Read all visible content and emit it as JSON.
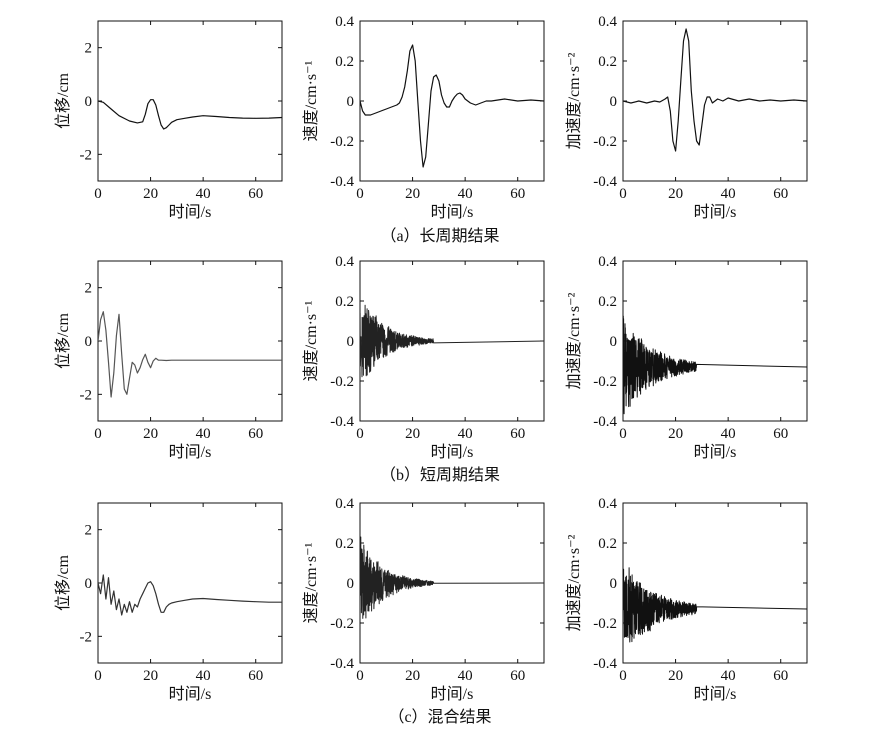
{
  "captions": [
    "（a）长周期结果",
    "（b）短周期结果",
    "（c）混合结果"
  ],
  "chart_data": [
    {
      "type": "line",
      "row": "a",
      "quantity": "displacement",
      "xlabel": "时间/s",
      "ylabel": "位移/cm",
      "xlim": [
        0,
        70
      ],
      "ylim": [
        -3,
        3
      ],
      "xticks": [
        0,
        20,
        40,
        60
      ],
      "yticks": [
        -2,
        0,
        2
      ],
      "line_color": "#111111",
      "grid": false,
      "series": [
        {
          "kind": "smooth",
          "x": [
            0,
            2,
            5,
            8,
            12,
            15,
            17,
            18,
            19,
            20,
            21,
            22,
            23,
            24,
            25,
            26,
            27,
            28,
            30,
            33,
            36,
            40,
            45,
            50,
            55,
            60,
            65,
            70
          ],
          "y": [
            0,
            -0.05,
            -0.3,
            -0.55,
            -0.75,
            -0.82,
            -0.78,
            -0.5,
            -0.1,
            0.05,
            0.05,
            -0.15,
            -0.55,
            -0.9,
            -1.05,
            -1.0,
            -0.9,
            -0.8,
            -0.7,
            -0.65,
            -0.6,
            -0.55,
            -0.58,
            -0.62,
            -0.64,
            -0.65,
            -0.64,
            -0.62
          ]
        }
      ]
    },
    {
      "type": "line",
      "row": "a",
      "quantity": "velocity",
      "xlabel": "时间/s",
      "ylabel": "速度/cm·s⁻¹",
      "xlim": [
        0,
        70
      ],
      "ylim": [
        -0.4,
        0.4
      ],
      "xticks": [
        0,
        20,
        40,
        60
      ],
      "yticks": [
        -0.4,
        -0.2,
        0,
        0.2,
        0.4
      ],
      "line_color": "#111111",
      "grid": false,
      "series": [
        {
          "kind": "smooth",
          "x": [
            0,
            1,
            2,
            4,
            6,
            8,
            10,
            12,
            14,
            15,
            16,
            17,
            18,
            19,
            20,
            21,
            22,
            23,
            24,
            25,
            26,
            27,
            28,
            29,
            30,
            31,
            32,
            33,
            34,
            35,
            36,
            37,
            38,
            39,
            40,
            42,
            44,
            46,
            48,
            50,
            55,
            60,
            65,
            70
          ],
          "y": [
            0,
            -0.05,
            -0.07,
            -0.07,
            -0.06,
            -0.05,
            -0.04,
            -0.03,
            -0.02,
            -0.01,
            0.02,
            0.07,
            0.15,
            0.25,
            0.28,
            0.2,
            0.0,
            -0.2,
            -0.33,
            -0.28,
            -0.12,
            0.05,
            0.12,
            0.13,
            0.1,
            0.03,
            -0.01,
            -0.03,
            -0.03,
            0.0,
            0.02,
            0.035,
            0.04,
            0.03,
            0.01,
            -0.01,
            -0.02,
            -0.01,
            0.0,
            0.0,
            0.01,
            0.0,
            0.005,
            0.0
          ]
        }
      ]
    },
    {
      "type": "line",
      "row": "a",
      "quantity": "acceleration",
      "xlabel": "时间/s",
      "ylabel": "加速度/cm·s⁻²",
      "xlim": [
        0,
        70
      ],
      "ylim": [
        -0.4,
        0.4
      ],
      "xticks": [
        0,
        20,
        40,
        60
      ],
      "yticks": [
        -0.4,
        -0.2,
        0,
        0.2,
        0.4
      ],
      "line_color": "#111111",
      "grid": false,
      "series": [
        {
          "kind": "smooth",
          "x": [
            0,
            3,
            6,
            9,
            12,
            14,
            16,
            17,
            18,
            19,
            20,
            21,
            22,
            23,
            24,
            25,
            26,
            27,
            28,
            29,
            30,
            31,
            32,
            33,
            34,
            36,
            38,
            40,
            44,
            48,
            52,
            56,
            60,
            65,
            70
          ],
          "y": [
            0,
            -0.01,
            0.0,
            -0.01,
            0.0,
            -0.005,
            0.01,
            0.02,
            -0.05,
            -0.2,
            -0.25,
            -0.1,
            0.1,
            0.3,
            0.36,
            0.3,
            0.05,
            -0.1,
            -0.2,
            -0.22,
            -0.12,
            -0.02,
            0.02,
            0.02,
            -0.01,
            0.01,
            0.0,
            0.015,
            0.0,
            0.01,
            0.0,
            0.005,
            0.0,
            0.005,
            0.0
          ]
        }
      ]
    },
    {
      "type": "line",
      "row": "b",
      "quantity": "displacement",
      "xlabel": "时间/s",
      "ylabel": "位移/cm",
      "xlim": [
        0,
        70
      ],
      "ylim": [
        -3,
        3
      ],
      "xticks": [
        0,
        20,
        40,
        60
      ],
      "yticks": [
        -2,
        0,
        2
      ],
      "line_color": "#555555",
      "grid": false,
      "series": [
        {
          "kind": "smooth",
          "x": [
            0,
            1,
            2,
            3,
            4,
            5,
            6,
            7,
            8,
            9,
            10,
            11,
            12,
            13,
            14,
            15,
            16,
            17,
            18,
            19,
            20,
            21,
            22,
            23,
            24,
            26,
            28,
            30,
            40,
            50,
            60,
            70
          ],
          "y": [
            0,
            0.8,
            1.1,
            0.4,
            -0.8,
            -2.1,
            -1.2,
            0.2,
            1.0,
            -0.5,
            -1.8,
            -2.0,
            -1.4,
            -0.8,
            -0.9,
            -1.2,
            -1.0,
            -0.7,
            -0.5,
            -0.8,
            -1.0,
            -0.75,
            -0.65,
            -0.72,
            -0.72,
            -0.73,
            -0.72,
            -0.72,
            -0.72,
            -0.72,
            -0.72,
            -0.72
          ]
        }
      ]
    },
    {
      "type": "line",
      "row": "b",
      "quantity": "velocity",
      "xlabel": "时间/s",
      "ylabel": "速度/cm·s⁻¹",
      "xlim": [
        0,
        70
      ],
      "ylim": [
        -0.4,
        0.4
      ],
      "xticks": [
        0,
        20,
        40,
        60
      ],
      "yticks": [
        -0.4,
        -0.2,
        0,
        0.2,
        0.4
      ],
      "line_color": "#222222",
      "grid": false,
      "series": [
        {
          "kind": "noise",
          "x_start": 0,
          "x_end": 28,
          "center": 0,
          "amplitude": 0.25,
          "decay_tau": 9,
          "after": 0
        }
      ]
    },
    {
      "type": "line",
      "row": "b",
      "quantity": "acceleration",
      "xlabel": "时间/s",
      "ylabel": "加速度/cm·s⁻²",
      "xlim": [
        0,
        70
      ],
      "ylim": [
        -0.4,
        0.4
      ],
      "xticks": [
        0,
        20,
        40,
        60
      ],
      "yticks": [
        -0.4,
        -0.2,
        0,
        0.2,
        0.4
      ],
      "line_color": "#111111",
      "grid": false,
      "series": [
        {
          "kind": "noise",
          "x_start": 0,
          "x_end": 28,
          "center": -0.13,
          "amplitude": 0.26,
          "decay_tau": 12,
          "after": -0.13
        }
      ]
    },
    {
      "type": "line",
      "row": "c",
      "quantity": "displacement",
      "xlabel": "时间/s",
      "ylabel": "位移/cm",
      "xlim": [
        0,
        70
      ],
      "ylim": [
        -3,
        3
      ],
      "xticks": [
        0,
        20,
        40,
        60
      ],
      "yticks": [
        -2,
        0,
        2
      ],
      "line_color": "#333333",
      "grid": false,
      "series": [
        {
          "kind": "smooth",
          "x": [
            0,
            1,
            2,
            3,
            4,
            5,
            6,
            7,
            8,
            9,
            10,
            11,
            12,
            13,
            14,
            15,
            16,
            17,
            18,
            19,
            20,
            21,
            22,
            23,
            24,
            25,
            26,
            27,
            28,
            30,
            33,
            36,
            40,
            45,
            50,
            55,
            60,
            65,
            70
          ],
          "y": [
            0,
            -0.4,
            0.3,
            -0.6,
            0.2,
            -0.8,
            -0.3,
            -1.0,
            -0.6,
            -1.2,
            -0.8,
            -1.1,
            -0.7,
            -1.1,
            -0.8,
            -0.9,
            -0.6,
            -0.4,
            -0.2,
            0.0,
            0.05,
            -0.1,
            -0.4,
            -0.8,
            -1.1,
            -1.1,
            -0.9,
            -0.8,
            -0.75,
            -0.7,
            -0.65,
            -0.6,
            -0.58,
            -0.62,
            -0.65,
            -0.68,
            -0.7,
            -0.72,
            -0.72
          ]
        }
      ]
    },
    {
      "type": "line",
      "row": "c",
      "quantity": "velocity",
      "xlabel": "时间/s",
      "ylabel": "速度/cm·s⁻¹",
      "xlim": [
        0,
        70
      ],
      "ylim": [
        -0.4,
        0.4
      ],
      "xticks": [
        0,
        20,
        40,
        60
      ],
      "yticks": [
        -0.4,
        -0.2,
        0,
        0.2,
        0.4
      ],
      "line_color": "#222222",
      "grid": false,
      "series": [
        {
          "kind": "noise",
          "x_start": 0,
          "x_end": 28,
          "center": 0,
          "amplitude": 0.24,
          "decay_tau": 9,
          "after": 0
        }
      ]
    },
    {
      "type": "line",
      "row": "c",
      "quantity": "acceleration",
      "xlabel": "时间/s",
      "ylabel": "加速度/cm·s⁻²",
      "xlim": [
        0,
        70
      ],
      "ylim": [
        -0.4,
        0.4
      ],
      "xticks": [
        0,
        20,
        40,
        60
      ],
      "yticks": [
        -0.4,
        -0.2,
        0,
        0.2,
        0.4
      ],
      "line_color": "#111111",
      "grid": false,
      "series": [
        {
          "kind": "noise",
          "x_start": 0,
          "x_end": 28,
          "center": -0.13,
          "amplitude": 0.26,
          "decay_tau": 12,
          "after": -0.13
        }
      ]
    }
  ]
}
